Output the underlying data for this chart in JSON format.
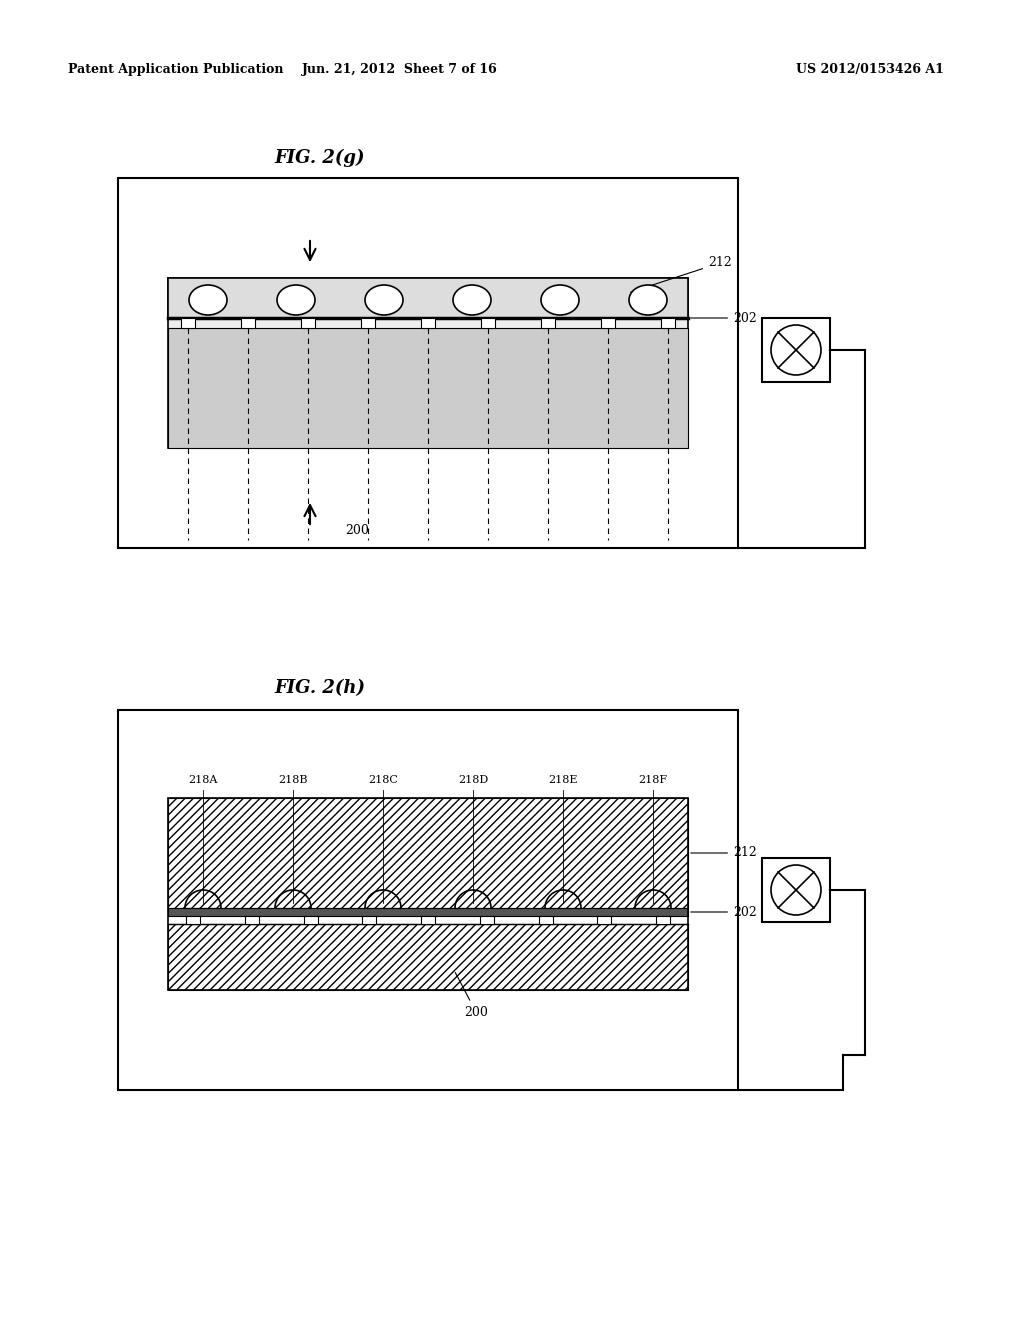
{
  "bg_color": "#ffffff",
  "header_left": "Patent Application Publication",
  "header_center": "Jun. 21, 2012  Sheet 7 of 16",
  "header_right": "US 2012/0153426 A1",
  "fig_g_title": "FIG. 2(g)",
  "fig_h_title": "FIG. 2(h)",
  "label_212": "212",
  "label_202": "202",
  "label_200": "200",
  "labels_218": [
    "218A",
    "218B",
    "218C",
    "218D",
    "218E",
    "218F"
  ]
}
